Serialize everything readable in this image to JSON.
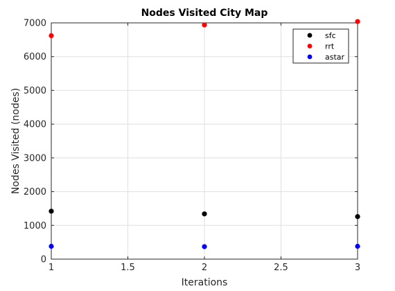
{
  "chart_data": {
    "type": "scatter",
    "title": "Nodes Visited City Map",
    "xlabel": "Iterations",
    "ylabel": "Nodes Visited (nodes)",
    "xlim": [
      1,
      3
    ],
    "ylim": [
      0,
      7000
    ],
    "x_ticks": [
      "1",
      "1.5",
      "2",
      "2.5",
      "3"
    ],
    "y_ticks": [
      "0",
      "1000",
      "2000",
      "3000",
      "4000",
      "5000",
      "6000",
      "7000"
    ],
    "grid": true,
    "legend_position": "top-right",
    "series": [
      {
        "name": "sfc",
        "color": "#000000",
        "points": [
          {
            "x": 1,
            "y": 1420
          },
          {
            "x": 2,
            "y": 1340
          },
          {
            "x": 3,
            "y": 1260
          }
        ]
      },
      {
        "name": "rrt",
        "color": "#ff0000",
        "points": [
          {
            "x": 1,
            "y": 6620
          },
          {
            "x": 2,
            "y": 6940
          },
          {
            "x": 3,
            "y": 7040
          }
        ]
      },
      {
        "name": "astar",
        "color": "#0000ff",
        "points": [
          {
            "x": 1,
            "y": 380
          },
          {
            "x": 2,
            "y": 370
          },
          {
            "x": 3,
            "y": 380
          }
        ]
      }
    ]
  }
}
